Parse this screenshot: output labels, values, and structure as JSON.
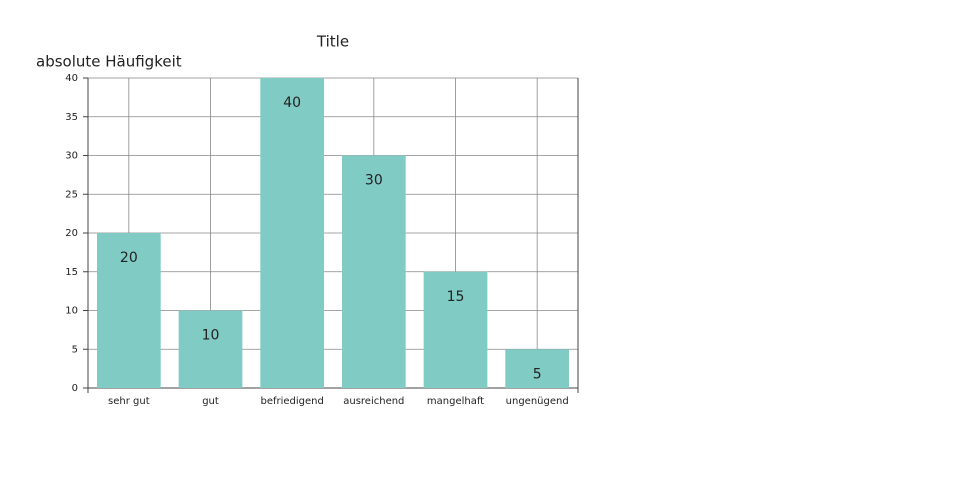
{
  "chart_data": {
    "type": "bar",
    "title": "Title",
    "y_label": "absolute Häufigkeit",
    "categories": [
      "sehr gut",
      "gut",
      "befriedigend",
      "ausreichend",
      "mangelhaft",
      "ungenügend"
    ],
    "values": [
      20,
      10,
      40,
      30,
      15,
      5
    ],
    "color": "#80cbc4",
    "ylim": [
      0,
      40
    ],
    "yticks": [
      0,
      5,
      10,
      15,
      20,
      25,
      30,
      35,
      40
    ],
    "grid": true,
    "data_labels": true
  }
}
